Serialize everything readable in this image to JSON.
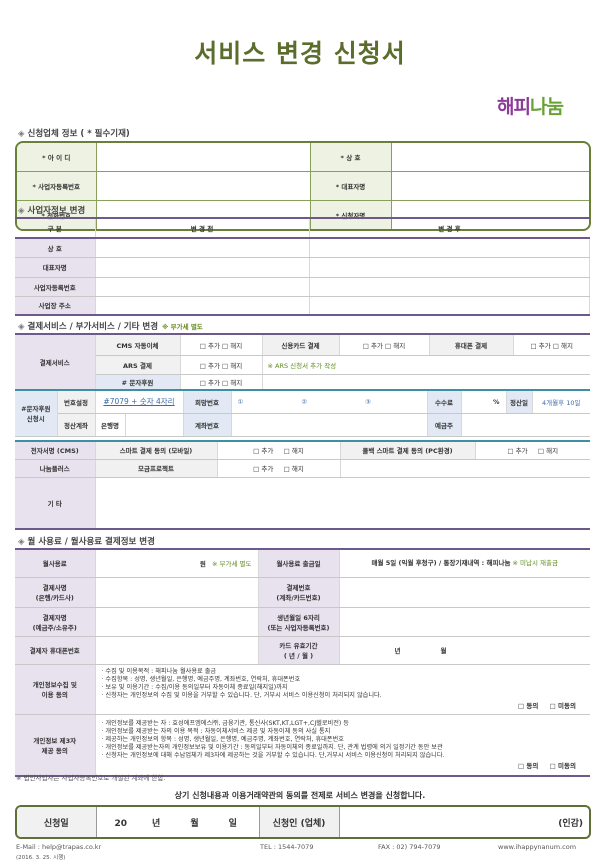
{
  "title": "서비스 변경 신청서",
  "logo": {
    "part1": "해피",
    "part2": "나눔"
  },
  "colors": {
    "title_green": "#5a6d2c",
    "border_green": "#6a7f38",
    "purple": "#6b5a8a",
    "teal": "#3d8fa3",
    "note_green": "#5f8c1e"
  },
  "sec1": {
    "header": "신청업체 정보 ( * 필수기재)",
    "rows": [
      [
        "* 아 이 디",
        "* 상      호"
      ],
      [
        "* 사업자등록번호",
        "* 대표자명"
      ],
      [
        "* 전화번호",
        "* 신청자명"
      ]
    ]
  },
  "sec2": {
    "header": "사업자정보 변경",
    "cols": [
      "구   분",
      "변 경 전",
      "변 경 후"
    ],
    "rows": [
      "상      호",
      "대표자명",
      "사업자등록번호",
      "사업장 주소"
    ]
  },
  "sec3": {
    "header": "결제서비스 / 부가서비스 / 기타 변경",
    "note": "※ 부가세 별도",
    "payment_label": "결제서비스",
    "cms": "CMS 자동이체",
    "card": "신용카드 결제",
    "phone": "휴대폰 결제",
    "ars": "ARS 결제",
    "ars_note": "※ ARS 신청서 추가 작성",
    "sms": "# 문자후원",
    "add": "□ 추가",
    "cancel": "□ 해지",
    "sms_apply": "#문자후원 신청시",
    "number_setting": "번호설정",
    "number_value": "#7079 + 숫자 4자리",
    "wish_number": "희망번호",
    "wish": [
      "①",
      "②",
      "③"
    ],
    "fee": "수수료",
    "percent": "%",
    "settle_day": "정산일",
    "settle_value": "4개월후 10일",
    "settle_account": "정산계좌",
    "bank": "은행명",
    "account_no": "계좌번호",
    "holder": "예금주",
    "esign": "전자서명 (CMS)",
    "smart_mobile": "스마트 결제 동의 (모바일)",
    "callback": "콜백 스마트 결제 동의 (PC환경)",
    "nanum_plus": "나눔플러스",
    "fund": "모금프로젝트",
    "etc": "기     타"
  },
  "sec4": {
    "header": "월 사용료 / 월사용료 결제정보 변경",
    "fee_label": "월사용료",
    "won": "원",
    "vat_note": "※ 부가세 별도",
    "withdraw_label": "월사용료 출금일",
    "withdraw_value": "매월 5일 (익월 후청구) / 통장기재내역 : 해피나눔",
    "unpaid_note": "※ 미납시 재출금",
    "payer_company": "결제사명\n(은행/카드사)",
    "payer_no": "결제번호\n(계좌/카드번호)",
    "payer_name": "결제자명\n(예금주/소유주)",
    "birth": "생년월일 6자리\n(또는 사업자등록번호)",
    "payer_phone": "결제자 휴대폰번호",
    "card_exp": "카드 유효기간\n( 년 / 월 )",
    "year": "년",
    "month": "월",
    "privacy_label": "개인정보수집 및\n이용 동의",
    "privacy_items": [
      "· 수집 및 이용목적 : 해피나눔 월사용료 출금",
      "· 수집항목 : 성명, 생년월일, 은행명, 예금주명, 계좌번호, 연락처, 휴대폰번호",
      "· 보유 및 이용기간 : 수집/이용 동의일부터 자동이체 종료일(해지일)까지",
      "· 신청자는 개인정보의 수집 및 이용을 거부할 수 있습니다. 단, 거부시 서비스 이용신청이 처리되지 않습니다."
    ],
    "third_label": "개인정보 제3자\n제공 동의",
    "third_items": [
      "· 개인정보를 제공받는 자 : 효성에프엠에스㈜, 금융기관, 통신사(SKT,KT,LGT+,CJ헬로비전) 등",
      "· 개인정보를 제공받는 자의 이용 목적 : 자동이체서비스 제공 및 자동이체 동의 사실 통지",
      "· 제공하는 개인정보의 항목 : 성명, 생년월일, 은행명, 예금주명, 계좌번호, 연락처, 휴대폰번호",
      "· 개인정보를 제공받는자의 개인정보보유 및 이용기간 : 동의일부터 자동이체의 종료일까지. 단, 관계 법령에 의거 일정기간 동안 보관",
      "· 신청자는 개인정보에 대해 수납업체가 제3자에 제공하는 것을 거부할 수 있습니다. 단,거부시 서비스 이용신청이 처리되지 않습니다."
    ],
    "agree": "□ 동의",
    "disagree": "□ 미동의"
  },
  "corp_note": "※ 법인사업자는 사업자등록번호로 개설된 계좌에 한함.",
  "statement": "상기 신청내용과 이용거래약관의 동의를 전제로 서비스 변경을 신청합니다.",
  "sign": {
    "date_label": "신청일",
    "yy": "20",
    "y": "년",
    "m": "월",
    "d": "일",
    "applicant": "신청인 (업체)",
    "seal": "(인감)"
  },
  "footer": {
    "email": "E-Mail : help@trapas.co.kr",
    "tel": "TEL : 1544-7079",
    "fax": "FAX : 02) 794-7079",
    "web": "www.ihappynanum.com",
    "effective": "(2016. 3. 25. 시행)"
  }
}
